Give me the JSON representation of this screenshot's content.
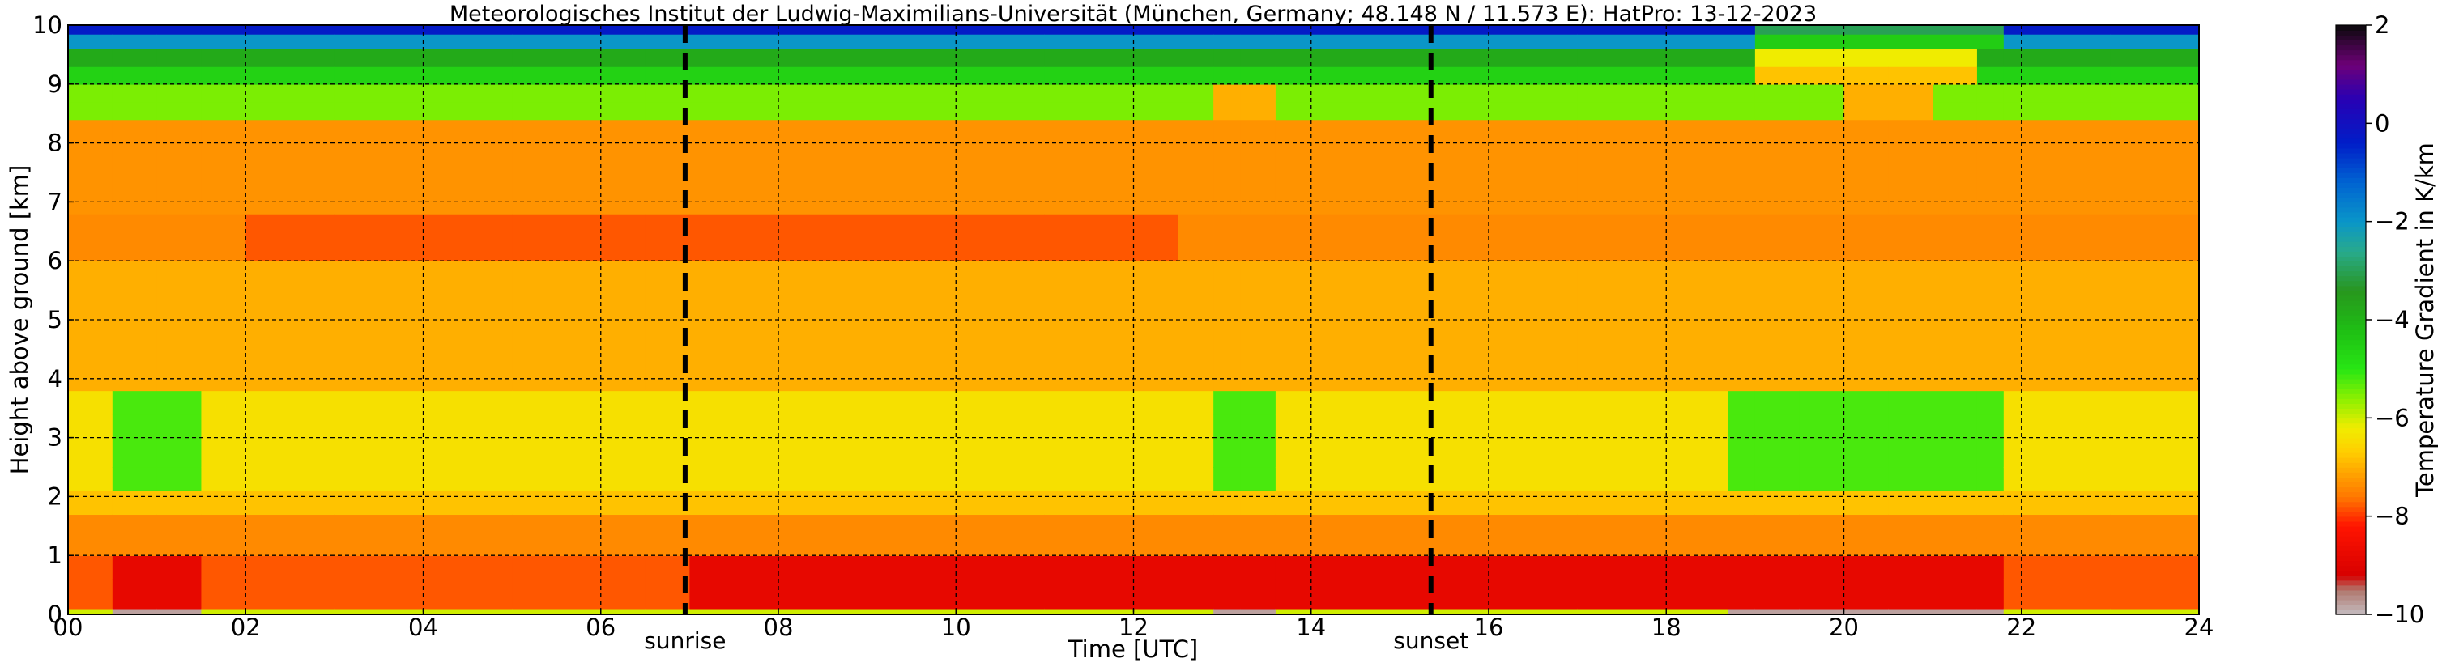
{
  "chart_data": {
    "type": "heatmap",
    "title": "Meteorologisches Institut der Ludwig-Maximilians-Universität (München, Germany; 48.148 N / 11.573 E):    HatPro: 13-12-2023",
    "xlabel": "Time [UTC]",
    "ylabel": "Height above ground [km]",
    "xlim": [
      0,
      24
    ],
    "ylim": [
      0,
      10
    ],
    "x_ticks": [
      "00",
      "02",
      "04",
      "06",
      "08",
      "10",
      "12",
      "14",
      "16",
      "18",
      "20",
      "22",
      "24"
    ],
    "y_ticks": [
      "0",
      "1",
      "2",
      "3",
      "4",
      "5",
      "6",
      "7",
      "8",
      "9",
      "10"
    ],
    "grid": true,
    "colorbar": {
      "label": "Temperature Gradient in K/km",
      "range": [
        -10,
        2
      ],
      "ticks": [
        "2",
        "0",
        "−2",
        "−4",
        "−6",
        "−8",
        "−10"
      ]
    },
    "annotations": [
      {
        "label": "sunrise",
        "x": 6.95
      },
      {
        "label": "sunset",
        "x": 15.35
      }
    ],
    "field": {
      "x": [
        0,
        0.5,
        1,
        1.5,
        2,
        3,
        4,
        5,
        6,
        6.5,
        7,
        8,
        9,
        10,
        11,
        12,
        12.5,
        12.9,
        13.2,
        13.6,
        14,
        15,
        16,
        17,
        18,
        18.7,
        19,
        19.5,
        20,
        20.5,
        21,
        21.5,
        21.8,
        22,
        23,
        24
      ],
      "y": [
        0,
        0.1,
        0.3,
        0.6,
        1.0,
        1.3,
        1.7,
        2.1,
        2.5,
        3.0,
        3.4,
        3.8,
        4.5,
        5.5,
        6.0,
        6.3,
        6.5,
        6.8,
        7.5,
        8.0,
        8.4,
        8.7,
        9.0,
        9.3,
        9.6,
        9.85,
        10
      ]
    }
  }
}
